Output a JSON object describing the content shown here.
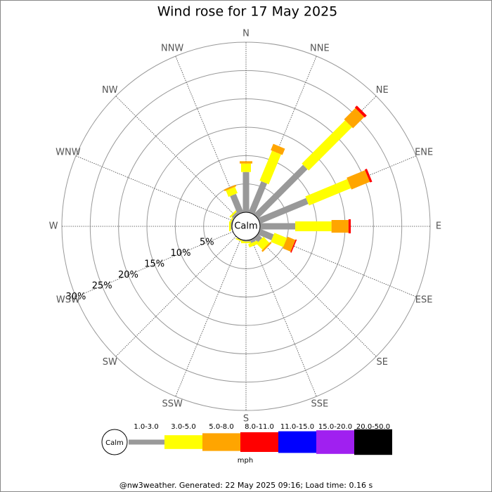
{
  "chart_data": {
    "type": "windrose",
    "title": "Wind rose for 17 May 2025",
    "categories": [
      "N",
      "NNE",
      "NE",
      "ENE",
      "E",
      "ESE",
      "SE",
      "SSE",
      "S",
      "SSW",
      "SW",
      "WSW",
      "W",
      "WNW",
      "NW",
      "NNW"
    ],
    "calm_label": "Calm",
    "rlim": [
      0,
      30
    ],
    "rticks": [
      {
        "value": 5,
        "label": "5%"
      },
      {
        "value": 10,
        "label": "10%"
      },
      {
        "value": 15,
        "label": "15%"
      },
      {
        "value": 20,
        "label": "20%"
      },
      {
        "value": 25,
        "label": "25%"
      },
      {
        "value": 30,
        "label": "30%"
      }
    ],
    "series": [
      {
        "name": "1.0-3.0",
        "color": "#999999",
        "values": [
          7.1,
          5.9,
          12.3,
          9.2,
          6.2,
          2.6,
          1.0,
          0.6,
          0.2,
          0.1,
          0,
          0,
          0.2,
          0.2,
          0.5,
          3.5
        ]
      },
      {
        "name": "3.0-5.0",
        "color": "#ffff00",
        "values": [
          1.5,
          5.7,
          10.8,
          8.0,
          6.4,
          2.4,
          1.5,
          0.6,
          0.3,
          0.2,
          0,
          0,
          0.3,
          0.2,
          0.3,
          1.2
        ]
      },
      {
        "name": "5.0-8.0",
        "color": "#ffa500",
        "values": [
          0.4,
          1.2,
          2.8,
          3.5,
          3.0,
          1.5,
          0.3,
          0,
          0,
          0,
          0,
          0,
          0,
          0,
          0,
          0.3
        ]
      },
      {
        "name": "8.0-11.0",
        "color": "#ff0000",
        "values": [
          0,
          0,
          0.5,
          0.4,
          0.4,
          0.2,
          0,
          0,
          0,
          0,
          0,
          0,
          0,
          0,
          0,
          0
        ]
      },
      {
        "name": "11.0-15.0",
        "color": "#0000ff",
        "values": [
          0,
          0,
          0,
          0,
          0,
          0,
          0,
          0,
          0,
          0,
          0,
          0,
          0,
          0,
          0,
          0
        ]
      },
      {
        "name": "15.0-20.0",
        "color": "#a020f0",
        "values": [
          0,
          0,
          0,
          0,
          0,
          0,
          0,
          0,
          0,
          0,
          0,
          0,
          0,
          0,
          0,
          0
        ]
      },
      {
        "name": "20.0-50.0",
        "color": "#000000",
        "values": [
          0,
          0,
          0,
          0,
          0,
          0,
          0,
          0,
          0,
          0,
          0,
          0,
          0,
          0,
          0,
          0
        ]
      }
    ],
    "unit_label": "mph",
    "footer": "@nw3weather. Generated: 22 May 2025 09:16; Load time: 0.16 s"
  }
}
